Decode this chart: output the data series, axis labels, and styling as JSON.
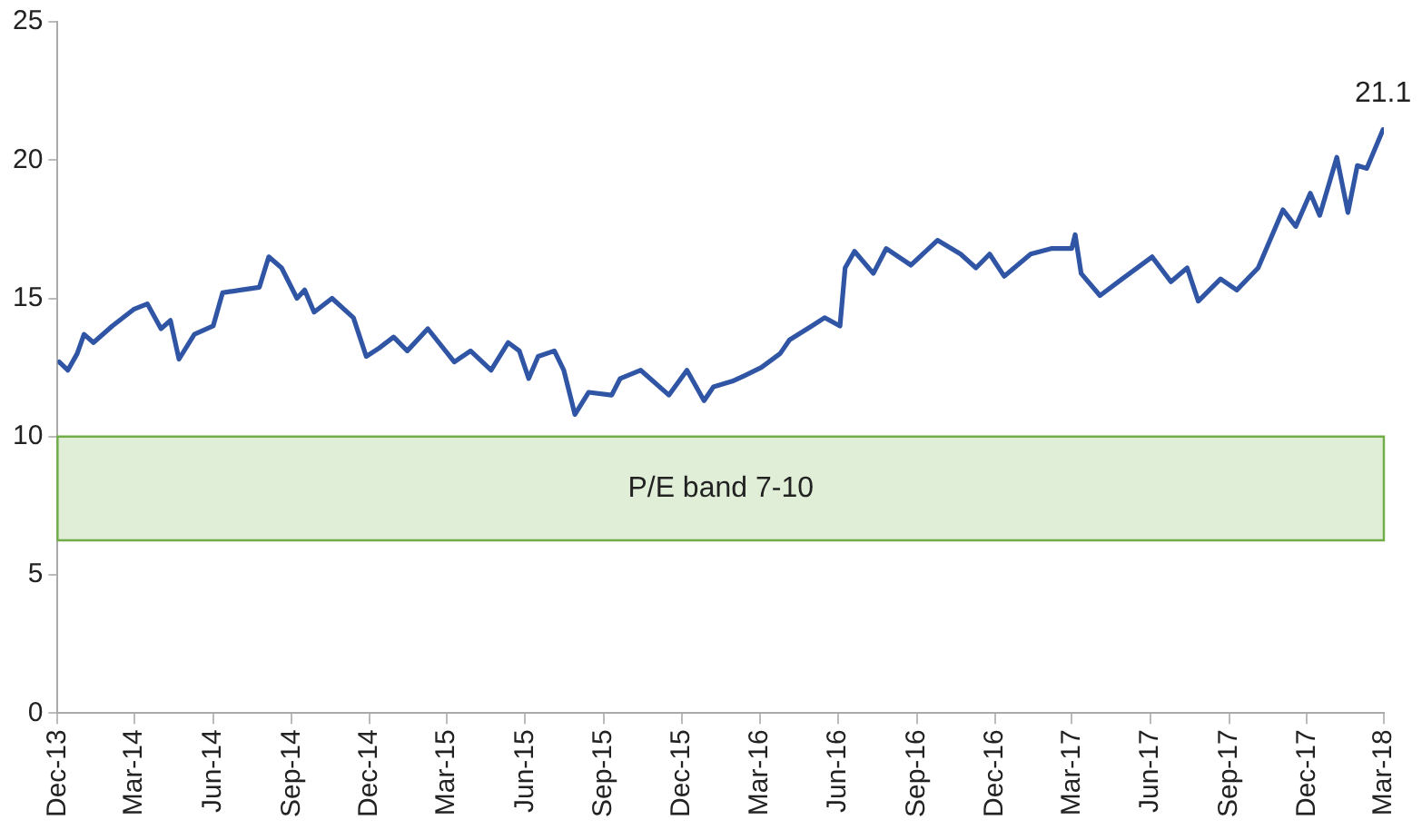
{
  "chart_data": {
    "type": "line",
    "x": [
      "2013-12-03",
      "2013-12-13",
      "2013-12-24",
      "2014-01-01",
      "2014-01-12",
      "2014-02-03",
      "2014-02-28",
      "2014-03-16",
      "2014-04-01",
      "2014-04-12",
      "2014-04-22",
      "2014-05-10",
      "2014-06-01",
      "2014-06-12",
      "2014-07-03",
      "2014-07-25",
      "2014-08-05",
      "2014-08-20",
      "2014-09-07",
      "2014-09-16",
      "2014-09-27",
      "2014-10-18",
      "2014-11-12",
      "2014-11-27",
      "2014-12-12",
      "2014-12-29",
      "2015-01-14",
      "2015-02-07",
      "2015-03-10",
      "2015-03-29",
      "2015-04-22",
      "2015-05-12",
      "2015-05-25",
      "2015-06-05",
      "2015-06-16",
      "2015-07-05",
      "2015-07-16",
      "2015-07-29",
      "2015-08-14",
      "2015-09-10",
      "2015-09-20",
      "2015-10-14",
      "2015-11-16",
      "2015-12-07",
      "2015-12-27",
      "2016-01-07",
      "2016-01-29",
      "2016-02-12",
      "2016-03-03",
      "2016-03-25",
      "2016-04-05",
      "2016-05-01",
      "2016-05-16",
      "2016-06-03",
      "2016-06-09",
      "2016-06-20",
      "2016-07-12",
      "2016-07-27",
      "2016-08-25",
      "2016-09-25",
      "2016-10-22",
      "2016-11-09",
      "2016-11-25",
      "2016-12-12",
      "2017-01-12",
      "2017-02-05",
      "2017-03-01",
      "2017-03-05",
      "2017-03-12",
      "2017-04-03",
      "2017-04-29",
      "2017-06-03",
      "2017-06-25",
      "2017-07-14",
      "2017-07-27",
      "2017-08-22",
      "2017-09-10",
      "2017-10-05",
      "2017-11-03",
      "2017-11-18",
      "2017-12-05",
      "2017-12-16",
      "2018-01-05",
      "2018-01-18",
      "2018-01-29",
      "2018-02-09",
      "2018-02-28"
    ],
    "series": [
      {
        "color": "#2f55a4",
        "values": [
          12.7,
          12.4,
          13.0,
          13.7,
          13.4,
          14.0,
          14.6,
          14.8,
          13.9,
          14.2,
          12.8,
          13.7,
          14.0,
          15.2,
          15.3,
          15.4,
          16.5,
          16.1,
          15.0,
          15.3,
          14.5,
          15.0,
          14.3,
          12.9,
          13.2,
          13.6,
          13.1,
          13.9,
          12.7,
          13.1,
          12.4,
          13.4,
          13.1,
          12.1,
          12.9,
          13.1,
          12.4,
          10.8,
          11.6,
          11.5,
          12.1,
          12.4,
          11.5,
          12.4,
          11.3,
          11.8,
          12.0,
          12.2,
          12.5,
          13.0,
          13.5,
          14.0,
          14.3,
          14.0,
          16.1,
          16.7,
          15.9,
          16.8,
          16.2,
          17.1,
          16.6,
          16.1,
          16.6,
          15.8,
          16.6,
          16.8,
          16.8,
          17.3,
          15.9,
          15.1,
          15.7,
          16.5,
          15.6,
          16.1,
          14.9,
          15.7,
          15.3,
          16.1,
          18.2,
          17.6,
          18.8,
          18.0,
          20.1,
          18.1,
          19.8,
          19.7,
          21.1
        ],
        "value_labels": [
          null,
          null,
          null,
          null,
          null,
          null,
          null,
          null,
          null,
          null,
          null,
          null,
          null,
          null,
          null,
          null,
          null,
          null,
          null,
          null,
          null,
          null,
          null,
          null,
          null,
          null,
          null,
          null,
          null,
          null,
          null,
          null,
          null,
          null,
          null,
          null,
          null,
          null,
          null,
          null,
          null,
          null,
          null,
          null,
          null,
          null,
          null,
          null,
          null,
          null,
          null,
          null,
          null,
          null,
          null,
          null,
          null,
          null,
          null,
          null,
          null,
          null,
          null,
          null,
          null,
          null,
          null,
          null,
          null,
          null,
          null,
          null,
          null,
          null,
          null,
          null,
          null,
          null,
          null,
          null,
          null,
          null,
          null,
          null,
          null,
          null,
          "21.1"
        ]
      }
    ],
    "xlim": [
      "2013-12-01",
      "2018-03-01"
    ],
    "xticks": [
      {
        "value": "2013-12-01",
        "label": "Dec-13"
      },
      {
        "value": "2014-03-01",
        "label": "Mar-14"
      },
      {
        "value": "2014-06-01",
        "label": "Jun-14"
      },
      {
        "value": "2014-09-01",
        "label": "Sep-14"
      },
      {
        "value": "2014-12-01",
        "label": "Dec-14"
      },
      {
        "value": "2015-03-01",
        "label": "Mar-15"
      },
      {
        "value": "2015-06-01",
        "label": "Jun-15"
      },
      {
        "value": "2015-09-01",
        "label": "Sep-15"
      },
      {
        "value": "2015-12-01",
        "label": "Dec-15"
      },
      {
        "value": "2016-03-01",
        "label": "Mar-16"
      },
      {
        "value": "2016-06-01",
        "label": "Jun-16"
      },
      {
        "value": "2016-09-01",
        "label": "Sep-16"
      },
      {
        "value": "2016-12-01",
        "label": "Dec-16"
      },
      {
        "value": "2017-03-01",
        "label": "Mar-17"
      },
      {
        "value": "2017-06-01",
        "label": "Jun-17"
      },
      {
        "value": "2017-09-01",
        "label": "Sep-17"
      },
      {
        "value": "2017-12-01",
        "label": "Dec-17"
      },
      {
        "value": "2018-03-01",
        "label": "Mar-18"
      }
    ],
    "ylim": [
      0,
      25
    ],
    "yticks": [
      0,
      5,
      10,
      15,
      20,
      25
    ],
    "bands": [
      {
        "axis": "y",
        "from": 6.25,
        "to": 10,
        "label": "P/E band 7-10",
        "color": "#70ad47"
      }
    ],
    "grid": false,
    "legend": false,
    "marker": "none",
    "line_style": "solid"
  }
}
